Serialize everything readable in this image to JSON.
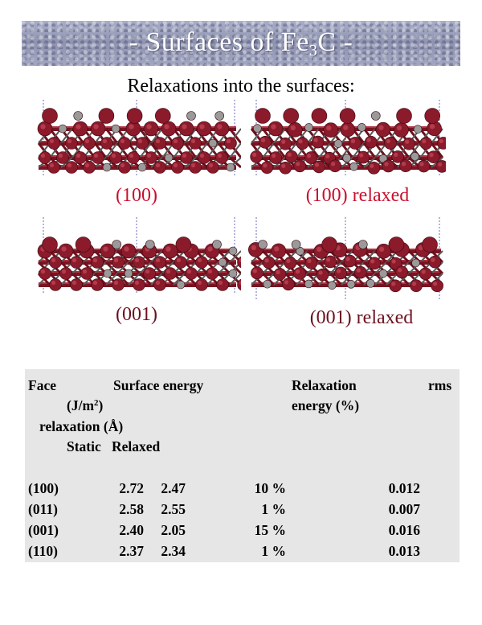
{
  "banner": {
    "title_prefix": "- Surfaces of Fe",
    "title_sub": "3",
    "title_suffix": "C -"
  },
  "subtitle": "Relaxations into the surfaces:",
  "structures": [
    {
      "caption": "(100)"
    },
    {
      "caption": "(100) relaxed"
    },
    {
      "caption": "(001)"
    },
    {
      "caption": "(001) relaxed"
    }
  ],
  "colors": {
    "iron_atom": "#8b1a2b",
    "carbon_atom": "#9a9a9a",
    "caption_red": "#c8102e",
    "caption_dark": "#6b1020",
    "table_bg": "#e6e6e6"
  },
  "table": {
    "headers": {
      "face": "Face",
      "surface_energy": "Surface energy",
      "relaxation": "Relaxation",
      "rms": "rms",
      "unit_energy_pre": "(J/m",
      "unit_energy_sup": "2",
      "unit_energy_post": ")",
      "energy_pct": "energy (%)",
      "relaxation_unit": "relaxation (Å)",
      "static": "Static",
      "relaxed": "Relaxed"
    },
    "rows": [
      {
        "face": "(100)",
        "static": "2.72",
        "relaxed": "2.47",
        "relax_energy": "10 %",
        "rms": "0.012"
      },
      {
        "face": "(011)",
        "static": "2.58",
        "relaxed": "2.55",
        "relax_energy": "1 %",
        "rms": "0.007"
      },
      {
        "face": "(001)",
        "static": "2.40",
        "relaxed": "2.05",
        "relax_energy": "15 %",
        "rms": "0.016"
      },
      {
        "face": "(110)",
        "static": "2.37",
        "relaxed": "2.34",
        "relax_energy": "1 %",
        "rms": "0.013"
      }
    ]
  }
}
